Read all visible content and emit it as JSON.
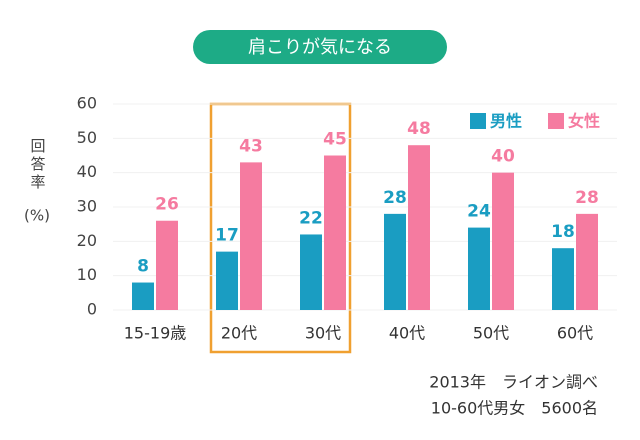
{
  "chart_data": {
    "type": "bar",
    "title": "肩こりが気になる",
    "y_label": "回答率",
    "y_unit": "(%)",
    "categories": [
      "15-19歳",
      "20代",
      "30代",
      "40代",
      "50代",
      "60代"
    ],
    "series": [
      {
        "name": "男性",
        "color": "#1a9dc2",
        "values": [
          8,
          17,
          22,
          28,
          24,
          18
        ]
      },
      {
        "name": "女性",
        "color": "#f57ba0",
        "values": [
          26,
          43,
          45,
          48,
          40,
          28
        ]
      }
    ],
    "ylim": [
      0,
      60
    ],
    "yticks": [
      0,
      10,
      20,
      30,
      40,
      50,
      60
    ],
    "grid": true,
    "legend": "top-right",
    "notes": [
      "2013年　ライオン調べ",
      "10-60代男女　5600名"
    ]
  }
}
